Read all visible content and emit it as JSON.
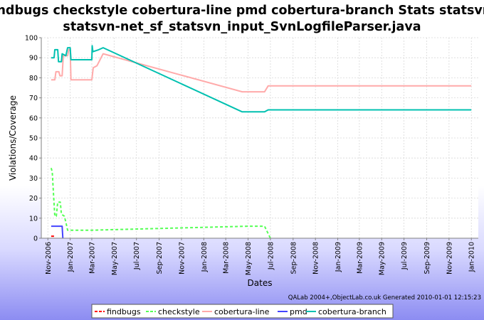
{
  "chart_data": {
    "type": "line",
    "title_line1": "findbugs checkstyle cobertura-line pmd cobertura-branch  Stats statsvn-",
    "title_line2": "statsvn-net_sf_statsvn_input_SvnLogfileParser.java",
    "xlabel": "Dates",
    "ylabel": "Violations/Coverage",
    "ylim": [
      0,
      100
    ],
    "yticks": [
      0,
      10,
      20,
      30,
      40,
      50,
      60,
      70,
      80,
      90,
      100
    ],
    "xlim": [
      "2006-10-14",
      "2010-01-20"
    ],
    "xticks": [
      "2006-11-01",
      "2007-01-01",
      "2007-03-01",
      "2007-05-01",
      "2007-07-01",
      "2007-09-01",
      "2007-11-01",
      "2008-01-01",
      "2008-03-01",
      "2008-05-01",
      "2008-07-01",
      "2008-09-01",
      "2008-11-01",
      "2009-01-01",
      "2009-03-01",
      "2009-05-01",
      "2009-07-01",
      "2009-09-01",
      "2009-11-01",
      "2010-01-01"
    ],
    "xtick_labels": [
      "Nov-2006",
      "Jan-2007",
      "Mar-2007",
      "May-2007",
      "Jul-2007",
      "Sep-2007",
      "Nov-2007",
      "Jan-2008",
      "Mar-2008",
      "May-2008",
      "Jul-2008",
      "Sep-2008",
      "Nov-2008",
      "Jan-2009",
      "Mar-2009",
      "May-2009",
      "Jul-2009",
      "Sep-2009",
      "Nov-2009",
      "Jan-2010"
    ],
    "grid": true,
    "legend_position": "bottom",
    "series": [
      {
        "name": "findbugs",
        "color": "#ff0000",
        "style": "dashed",
        "points": [
          [
            "2006-11-10",
            1
          ],
          [
            "2006-11-20",
            1
          ]
        ]
      },
      {
        "name": "checkstyle",
        "color": "#55ff55",
        "style": "dashed",
        "points": [
          [
            "2006-11-10",
            35
          ],
          [
            "2006-11-13",
            33
          ],
          [
            "2006-11-17",
            20
          ],
          [
            "2006-11-20",
            11
          ],
          [
            "2006-11-24",
            11
          ],
          [
            "2006-11-28",
            18
          ],
          [
            "2006-12-05",
            18
          ],
          [
            "2006-12-08",
            12
          ],
          [
            "2006-12-16",
            11
          ],
          [
            "2006-12-20",
            8
          ],
          [
            "2006-12-25",
            4
          ],
          [
            "2007-03-01",
            4
          ],
          [
            "2008-05-01",
            6
          ],
          [
            "2008-06-15",
            6
          ],
          [
            "2008-07-01",
            0
          ]
        ]
      },
      {
        "name": "cobertura-line",
        "color": "#ffaaaa",
        "style": "solid",
        "points": [
          [
            "2006-11-10",
            79
          ],
          [
            "2006-11-20",
            79
          ],
          [
            "2006-11-23",
            83
          ],
          [
            "2006-12-01",
            83
          ],
          [
            "2006-12-04",
            81
          ],
          [
            "2006-12-10",
            81
          ],
          [
            "2006-12-13",
            91
          ],
          [
            "2006-12-25",
            91
          ],
          [
            "2006-12-28",
            94
          ],
          [
            "2007-01-01",
            94
          ],
          [
            "2007-01-03",
            79
          ],
          [
            "2007-03-01",
            79
          ],
          [
            "2007-03-05",
            85
          ],
          [
            "2007-03-15",
            86
          ],
          [
            "2007-04-01",
            92
          ],
          [
            "2008-04-15",
            73
          ],
          [
            "2008-06-15",
            73
          ],
          [
            "2008-06-25",
            76
          ],
          [
            "2010-01-01",
            76
          ]
        ]
      },
      {
        "name": "pmd",
        "color": "#4444ff",
        "style": "solid",
        "points": [
          [
            "2006-11-10",
            6
          ],
          [
            "2006-12-10",
            6
          ],
          [
            "2006-12-12",
            0
          ]
        ]
      },
      {
        "name": "cobertura-branch",
        "color": "#00c0b0",
        "style": "solid",
        "points": [
          [
            "2006-11-10",
            90
          ],
          [
            "2006-11-18",
            90
          ],
          [
            "2006-11-20",
            94
          ],
          [
            "2006-11-28",
            94
          ],
          [
            "2006-11-30",
            88
          ],
          [
            "2006-12-08",
            88
          ],
          [
            "2006-12-10",
            92
          ],
          [
            "2006-12-20",
            91
          ],
          [
            "2006-12-25",
            95
          ],
          [
            "2007-01-01",
            95
          ],
          [
            "2007-01-03",
            89
          ],
          [
            "2007-03-01",
            89
          ],
          [
            "2007-03-02",
            96
          ],
          [
            "2007-03-04",
            93
          ],
          [
            "2007-03-20",
            94
          ],
          [
            "2007-04-01",
            95
          ],
          [
            "2008-04-15",
            63
          ],
          [
            "2008-06-15",
            63
          ],
          [
            "2008-06-25",
            64
          ],
          [
            "2010-01-01",
            64
          ]
        ]
      }
    ],
    "credit": "QALab 2004+,ObjectLab.co.uk  Generated 2010-01-01 12:15:23"
  }
}
